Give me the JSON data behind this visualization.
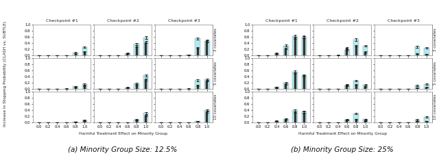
{
  "panel_titles": [
    "(a) Minority Group Size: 12.5%",
    "(b) Minority Group Size: 25%"
  ],
  "checkpoint_labels": [
    "Checkpoint #1",
    "Checkpoint #2",
    "Checkpoint #3"
  ],
  "row_labels": [
    "3 covariates",
    "5 covariates",
    "10 covariates"
  ],
  "xlabel": "Harmful Treatment Effect on Minority Group",
  "ylabel": "Increase in Stopping Probability (CLASH vs. SUBTLE)",
  "x_ticks": [
    0.0,
    0.2,
    0.4,
    0.6,
    0.8,
    1.0
  ],
  "bar_color_clash": "#b2ebf2",
  "bar_color_subtle": "#333333",
  "background_color": "#ffffff",
  "panel_a": {
    "data": [
      {
        "checkpoint": 0,
        "row": 0,
        "x_vals": [
          0.0,
          0.2,
          0.4,
          0.6,
          0.8,
          1.0
        ],
        "clash_bars": [
          0.003,
          0.003,
          0.005,
          0.01,
          0.1,
          0.27
        ],
        "clash_err": [
          0.002,
          0.002,
          0.002,
          0.003,
          0.02,
          0.03
        ],
        "subtle_bars": [
          0.002,
          0.002,
          0.003,
          0.006,
          0.07,
          0.12
        ],
        "subtle_err": [
          0.001,
          0.001,
          0.001,
          0.002,
          0.01,
          0.015
        ]
      },
      {
        "checkpoint": 1,
        "row": 0,
        "x_vals": [
          0.0,
          0.2,
          0.4,
          0.6,
          0.8,
          1.0
        ],
        "clash_bars": [
          0.003,
          0.003,
          0.005,
          0.08,
          0.37,
          0.57
        ],
        "clash_err": [
          0.002,
          0.002,
          0.002,
          0.015,
          0.03,
          0.04
        ],
        "subtle_bars": [
          0.002,
          0.002,
          0.003,
          0.05,
          0.3,
          0.43
        ],
        "subtle_err": [
          0.001,
          0.001,
          0.001,
          0.01,
          0.025,
          0.035
        ]
      },
      {
        "checkpoint": 2,
        "row": 0,
        "x_vals": [
          0.0,
          0.2,
          0.4,
          0.6,
          0.8,
          1.0
        ],
        "clash_bars": [
          0.003,
          0.003,
          0.005,
          0.02,
          0.55,
          0.47
        ],
        "clash_err": [
          0.002,
          0.002,
          0.002,
          0.005,
          0.035,
          0.035
        ],
        "subtle_bars": [
          0.002,
          0.002,
          0.003,
          0.012,
          0.25,
          0.46
        ],
        "subtle_err": [
          0.001,
          0.001,
          0.001,
          0.003,
          0.025,
          0.03
        ]
      },
      {
        "checkpoint": 0,
        "row": 1,
        "x_vals": [
          0.0,
          0.2,
          0.4,
          0.6,
          0.8,
          1.0
        ],
        "clash_bars": [
          0.003,
          0.003,
          0.005,
          0.01,
          0.08,
          0.16
        ],
        "clash_err": [
          0.002,
          0.002,
          0.002,
          0.003,
          0.015,
          0.02
        ],
        "subtle_bars": [
          0.002,
          0.002,
          0.003,
          0.005,
          0.05,
          0.1
        ],
        "subtle_err": [
          0.001,
          0.001,
          0.001,
          0.002,
          0.01,
          0.015
        ]
      },
      {
        "checkpoint": 1,
        "row": 1,
        "x_vals": [
          0.0,
          0.2,
          0.4,
          0.6,
          0.8,
          1.0
        ],
        "clash_bars": [
          0.003,
          0.003,
          0.005,
          0.05,
          0.18,
          0.44
        ],
        "clash_err": [
          0.002,
          0.002,
          0.002,
          0.01,
          0.025,
          0.035
        ],
        "subtle_bars": [
          0.002,
          0.002,
          0.003,
          0.03,
          0.14,
          0.3
        ],
        "subtle_err": [
          0.001,
          0.001,
          0.001,
          0.008,
          0.018,
          0.025
        ]
      },
      {
        "checkpoint": 2,
        "row": 1,
        "x_vals": [
          0.0,
          0.2,
          0.4,
          0.6,
          0.8,
          1.0
        ],
        "clash_bars": [
          0.003,
          0.003,
          0.005,
          0.012,
          0.28,
          0.3
        ],
        "clash_err": [
          0.002,
          0.002,
          0.002,
          0.003,
          0.025,
          0.025
        ],
        "subtle_bars": [
          0.002,
          0.002,
          0.003,
          0.008,
          0.11,
          0.27
        ],
        "subtle_err": [
          0.001,
          0.001,
          0.001,
          0.002,
          0.018,
          0.022
        ]
      },
      {
        "checkpoint": 0,
        "row": 2,
        "x_vals": [
          0.0,
          0.2,
          0.4,
          0.6,
          0.8,
          1.0
        ],
        "clash_bars": [
          0.002,
          0.002,
          0.003,
          0.005,
          0.02,
          0.07
        ],
        "clash_err": [
          0.001,
          0.001,
          0.001,
          0.002,
          0.008,
          0.015
        ],
        "subtle_bars": [
          0.001,
          0.001,
          0.002,
          0.003,
          0.015,
          0.05
        ],
        "subtle_err": [
          0.001,
          0.001,
          0.001,
          0.001,
          0.005,
          0.01
        ]
      },
      {
        "checkpoint": 1,
        "row": 2,
        "x_vals": [
          0.0,
          0.2,
          0.4,
          0.6,
          0.8,
          1.0
        ],
        "clash_bars": [
          0.002,
          0.002,
          0.003,
          0.008,
          0.09,
          0.3
        ],
        "clash_err": [
          0.001,
          0.001,
          0.001,
          0.002,
          0.015,
          0.025
        ],
        "subtle_bars": [
          0.001,
          0.001,
          0.002,
          0.005,
          0.07,
          0.22
        ],
        "subtle_err": [
          0.001,
          0.001,
          0.001,
          0.001,
          0.012,
          0.02
        ]
      },
      {
        "checkpoint": 2,
        "row": 2,
        "x_vals": [
          0.0,
          0.2,
          0.4,
          0.6,
          0.8,
          1.0
        ],
        "clash_bars": [
          0.002,
          0.002,
          0.003,
          0.005,
          0.04,
          0.4
        ],
        "clash_err": [
          0.001,
          0.001,
          0.001,
          0.002,
          0.01,
          0.03
        ],
        "subtle_bars": [
          0.001,
          0.001,
          0.002,
          0.003,
          0.03,
          0.33
        ],
        "subtle_err": [
          0.001,
          0.001,
          0.001,
          0.001,
          0.008,
          0.025
        ]
      }
    ]
  },
  "panel_b": {
    "data": [
      {
        "checkpoint": 0,
        "row": 0,
        "x_vals": [
          0.0,
          0.2,
          0.4,
          0.6,
          0.8,
          1.0
        ],
        "clash_bars": [
          0.003,
          0.005,
          0.07,
          0.32,
          0.63,
          0.6
        ],
        "clash_err": [
          0.002,
          0.003,
          0.015,
          0.035,
          0.035,
          0.035
        ],
        "subtle_bars": [
          0.002,
          0.003,
          0.05,
          0.22,
          0.57,
          0.58
        ],
        "subtle_err": [
          0.001,
          0.002,
          0.01,
          0.025,
          0.03,
          0.03
        ]
      },
      {
        "checkpoint": 1,
        "row": 0,
        "x_vals": [
          0.0,
          0.2,
          0.4,
          0.6,
          0.8,
          1.0
        ],
        "clash_bars": [
          0.003,
          0.003,
          0.012,
          0.19,
          0.51,
          0.31
        ],
        "clash_err": [
          0.002,
          0.002,
          0.003,
          0.028,
          0.035,
          0.03
        ],
        "subtle_bars": [
          0.002,
          0.002,
          0.008,
          0.24,
          0.31,
          0.11
        ],
        "subtle_err": [
          0.001,
          0.001,
          0.002,
          0.028,
          0.03,
          0.018
        ]
      },
      {
        "checkpoint": 2,
        "row": 0,
        "x_vals": [
          0.0,
          0.2,
          0.4,
          0.6,
          0.8,
          1.0
        ],
        "clash_bars": [
          0.003,
          0.003,
          0.005,
          0.008,
          0.28,
          0.25
        ],
        "clash_err": [
          0.002,
          0.002,
          0.002,
          0.003,
          0.03,
          0.028
        ],
        "subtle_bars": [
          0.002,
          0.002,
          0.003,
          0.005,
          0.06,
          0.04
        ],
        "subtle_err": [
          0.001,
          0.001,
          0.001,
          0.002,
          0.012,
          0.01
        ]
      },
      {
        "checkpoint": 0,
        "row": 1,
        "x_vals": [
          0.0,
          0.2,
          0.4,
          0.6,
          0.8,
          1.0
        ],
        "clash_bars": [
          0.003,
          0.005,
          0.06,
          0.2,
          0.56,
          0.44
        ],
        "clash_err": [
          0.002,
          0.003,
          0.012,
          0.028,
          0.035,
          0.035
        ],
        "subtle_bars": [
          0.002,
          0.003,
          0.04,
          0.15,
          0.51,
          0.42
        ],
        "subtle_err": [
          0.001,
          0.002,
          0.008,
          0.022,
          0.03,
          0.03
        ]
      },
      {
        "checkpoint": 1,
        "row": 1,
        "x_vals": [
          0.0,
          0.2,
          0.4,
          0.6,
          0.8,
          1.0
        ],
        "clash_bars": [
          0.003,
          0.003,
          0.008,
          0.12,
          0.26,
          0.14
        ],
        "clash_err": [
          0.002,
          0.002,
          0.002,
          0.02,
          0.025,
          0.022
        ],
        "subtle_bars": [
          0.002,
          0.002,
          0.005,
          0.14,
          0.13,
          0.09
        ],
        "subtle_err": [
          0.001,
          0.001,
          0.001,
          0.02,
          0.022,
          0.018
        ]
      },
      {
        "checkpoint": 2,
        "row": 1,
        "x_vals": [
          0.0,
          0.2,
          0.4,
          0.6,
          0.8,
          1.0
        ],
        "clash_bars": [
          0.003,
          0.003,
          0.005,
          0.008,
          0.11,
          0.16
        ],
        "clash_err": [
          0.002,
          0.002,
          0.002,
          0.003,
          0.018,
          0.022
        ],
        "subtle_bars": [
          0.002,
          0.002,
          0.003,
          0.005,
          0.04,
          0.05
        ],
        "subtle_err": [
          0.001,
          0.001,
          0.001,
          0.002,
          0.008,
          0.01
        ]
      },
      {
        "checkpoint": 0,
        "row": 2,
        "x_vals": [
          0.0,
          0.2,
          0.4,
          0.6,
          0.8,
          1.0
        ],
        "clash_bars": [
          0.002,
          0.003,
          0.05,
          0.12,
          0.39,
          0.35
        ],
        "clash_err": [
          0.001,
          0.002,
          0.01,
          0.02,
          0.03,
          0.03
        ],
        "subtle_bars": [
          0.001,
          0.002,
          0.03,
          0.09,
          0.33,
          0.32
        ],
        "subtle_err": [
          0.001,
          0.001,
          0.007,
          0.015,
          0.025,
          0.025
        ]
      },
      {
        "checkpoint": 1,
        "row": 2,
        "x_vals": [
          0.0,
          0.2,
          0.4,
          0.6,
          0.8,
          1.0
        ],
        "clash_bars": [
          0.002,
          0.002,
          0.005,
          0.08,
          0.28,
          0.1
        ],
        "clash_err": [
          0.001,
          0.001,
          0.001,
          0.015,
          0.025,
          0.018
        ],
        "subtle_bars": [
          0.001,
          0.001,
          0.003,
          0.09,
          0.1,
          0.06
        ],
        "subtle_err": [
          0.001,
          0.001,
          0.001,
          0.016,
          0.018,
          0.012
        ]
      },
      {
        "checkpoint": 2,
        "row": 2,
        "x_vals": [
          0.0,
          0.2,
          0.4,
          0.6,
          0.8,
          1.0
        ],
        "clash_bars": [
          0.002,
          0.002,
          0.003,
          0.005,
          0.09,
          0.18
        ],
        "clash_err": [
          0.001,
          0.001,
          0.001,
          0.002,
          0.016,
          0.022
        ],
        "subtle_bars": [
          0.001,
          0.001,
          0.002,
          0.003,
          0.03,
          0.04
        ],
        "subtle_err": [
          0.001,
          0.001,
          0.001,
          0.001,
          0.006,
          0.008
        ]
      }
    ]
  }
}
